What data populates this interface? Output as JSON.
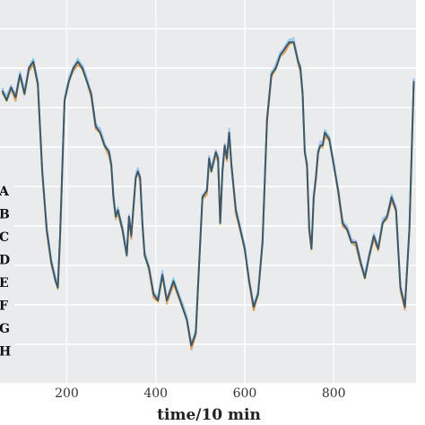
{
  "chart_data": {
    "type": "line",
    "xlabel": "time/10 min",
    "ylabel": "",
    "xlim": [
      50,
      985
    ],
    "ylim": [
      0.0,
      1.0
    ],
    "xticks": [
      200,
      400,
      600,
      800
    ],
    "xtick_labels": [
      "200",
      "400",
      "600",
      "800"
    ],
    "grid": true,
    "background": "#e9ebec",
    "grid_color": "#ffffff",
    "legend_position": "left",
    "legend": [
      "A",
      "B",
      "C",
      "D",
      "E",
      "F",
      "G",
      "H"
    ],
    "series": [
      {
        "name": "A",
        "color": "#f2a0c8",
        "offset": 0.004
      },
      {
        "name": "B",
        "color": "#f0e86a",
        "offset": -0.006
      },
      {
        "name": "C",
        "color": "#7fd6e6",
        "offset": 0.01
      },
      {
        "name": "D",
        "color": "#e89a5a",
        "offset": -0.012
      },
      {
        "name": "E",
        "color": "#c3a6e0",
        "offset": 0.006
      },
      {
        "name": "F",
        "color": "#b8e08a",
        "offset": -0.004
      },
      {
        "name": "G",
        "color": "#9ec5f0",
        "offset": 0.014
      },
      {
        "name": "H",
        "color": "#3f5766",
        "offset": 0.0
      }
    ],
    "x": [
      55,
      65,
      75,
      85,
      95,
      105,
      115,
      125,
      135,
      145,
      155,
      165,
      175,
      180,
      185,
      195,
      205,
      215,
      225,
      235,
      245,
      255,
      265,
      275,
      285,
      295,
      300,
      305,
      310,
      315,
      325,
      335,
      340,
      345,
      355,
      360,
      365,
      370,
      375,
      385,
      395,
      405,
      415,
      425,
      440,
      460,
      470,
      480,
      490,
      495,
      505,
      515,
      520,
      525,
      535,
      540,
      545,
      550,
      555,
      560,
      565,
      570,
      580,
      590,
      600,
      610,
      620,
      630,
      640,
      650,
      660,
      670,
      680,
      690,
      700,
      710,
      720,
      725,
      730,
      735,
      740,
      745,
      750,
      755,
      760,
      765,
      770,
      775,
      780,
      790,
      800,
      810,
      820,
      830,
      840,
      850,
      860,
      870,
      880,
      890,
      900,
      910,
      920,
      930,
      940,
      945,
      950,
      960,
      970,
      980
    ],
    "y": [
      0.83,
      0.8,
      0.84,
      0.81,
      0.88,
      0.82,
      0.9,
      0.92,
      0.85,
      0.58,
      0.4,
      0.3,
      0.24,
      0.22,
      0.38,
      0.8,
      0.86,
      0.9,
      0.92,
      0.9,
      0.86,
      0.82,
      0.72,
      0.7,
      0.66,
      0.64,
      0.6,
      0.5,
      0.44,
      0.46,
      0.4,
      0.32,
      0.44,
      0.38,
      0.56,
      0.58,
      0.56,
      0.42,
      0.32,
      0.28,
      0.2,
      0.18,
      0.26,
      0.18,
      0.24,
      0.16,
      0.12,
      0.04,
      0.08,
      0.22,
      0.5,
      0.52,
      0.62,
      0.58,
      0.64,
      0.62,
      0.42,
      0.58,
      0.66,
      0.62,
      0.7,
      0.6,
      0.46,
      0.4,
      0.34,
      0.24,
      0.16,
      0.2,
      0.36,
      0.74,
      0.88,
      0.9,
      0.94,
      0.96,
      0.98,
      0.98,
      0.92,
      0.9,
      0.82,
      0.64,
      0.6,
      0.4,
      0.34,
      0.5,
      0.56,
      0.64,
      0.66,
      0.66,
      0.7,
      0.68,
      0.6,
      0.52,
      0.42,
      0.4,
      0.36,
      0.36,
      0.3,
      0.25,
      0.32,
      0.38,
      0.34,
      0.42,
      0.44,
      0.5,
      0.46,
      0.34,
      0.22,
      0.16,
      0.4,
      0.86
    ]
  }
}
